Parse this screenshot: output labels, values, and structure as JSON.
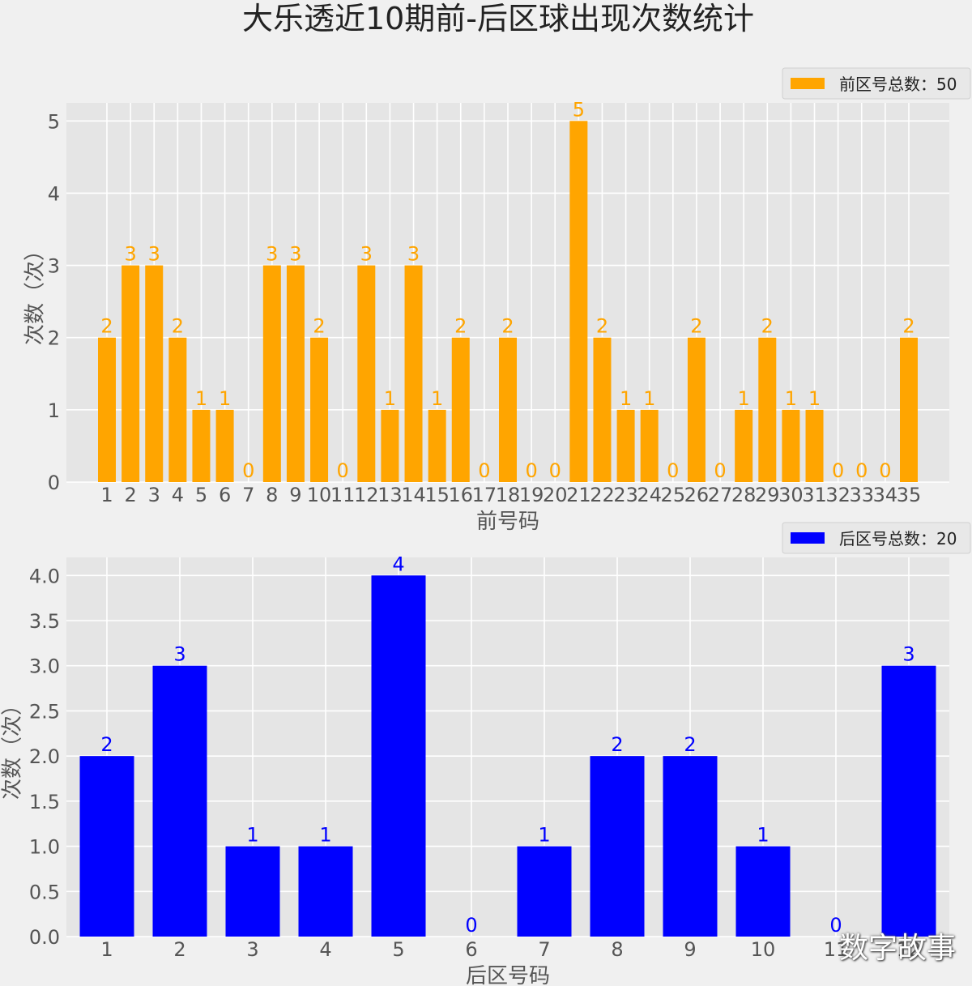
{
  "title": "大乐透近10期前-后区球出现次数统计",
  "watermark": "数字故事",
  "chart_data": [
    {
      "type": "bar",
      "categories": [
        "1",
        "2",
        "3",
        "4",
        "5",
        "6",
        "7",
        "8",
        "9",
        "10",
        "11",
        "12",
        "13",
        "14",
        "15",
        "16",
        "17",
        "18",
        "19",
        "20",
        "21",
        "22",
        "23",
        "24",
        "25",
        "26",
        "27",
        "28",
        "29",
        "30",
        "31",
        "32",
        "33",
        "34",
        "35"
      ],
      "values": [
        2,
        3,
        3,
        2,
        1,
        1,
        0,
        3,
        3,
        2,
        0,
        3,
        1,
        3,
        1,
        2,
        0,
        2,
        0,
        0,
        5,
        2,
        1,
        1,
        0,
        2,
        0,
        1,
        2,
        1,
        1,
        0,
        0,
        0,
        2
      ],
      "value_labels": [
        "2",
        "3",
        "3",
        "2",
        "1",
        "1",
        "0",
        "3",
        "3",
        "2",
        "0",
        "3",
        "1",
        "3",
        "1",
        "2",
        "0",
        "2",
        "0",
        "0",
        "5",
        "2",
        "1",
        "1",
        "0",
        "2",
        "0",
        "1",
        "2",
        "1",
        "1",
        "0",
        "0",
        "0",
        "2"
      ],
      "xlabel": "前号码",
      "ylabel": "次数（次）",
      "ylim": [
        0,
        5.25
      ],
      "yticks": [
        0,
        1,
        2,
        3,
        4,
        5
      ],
      "ytick_labels": [
        "0",
        "1",
        "2",
        "3",
        "4",
        "5"
      ],
      "color": "#ffa500",
      "legend": "前区号总数：50",
      "legend_position": "top-right",
      "grid": true
    },
    {
      "type": "bar",
      "categories": [
        "1",
        "2",
        "3",
        "4",
        "5",
        "6",
        "7",
        "8",
        "9",
        "10",
        "11",
        "12"
      ],
      "values": [
        2,
        3,
        1,
        1,
        4,
        0,
        1,
        2,
        2,
        1,
        0,
        3
      ],
      "value_labels": [
        "2",
        "3",
        "1",
        "1",
        "4",
        "0",
        "1",
        "2",
        "2",
        "1",
        "0",
        "3"
      ],
      "xlabel": "后区号码",
      "ylabel": "次数（次）",
      "ylim": [
        0,
        4.2
      ],
      "yticks": [
        0,
        0.5,
        1,
        1.5,
        2,
        2.5,
        3,
        3.5,
        4
      ],
      "ytick_labels": [
        "0.0",
        "0.5",
        "1.0",
        "1.5",
        "2.0",
        "2.5",
        "3.0",
        "3.5",
        "4.0"
      ],
      "color": "#0000ff",
      "legend": "后区号总数：20",
      "legend_position": "top-right",
      "grid": true
    }
  ]
}
